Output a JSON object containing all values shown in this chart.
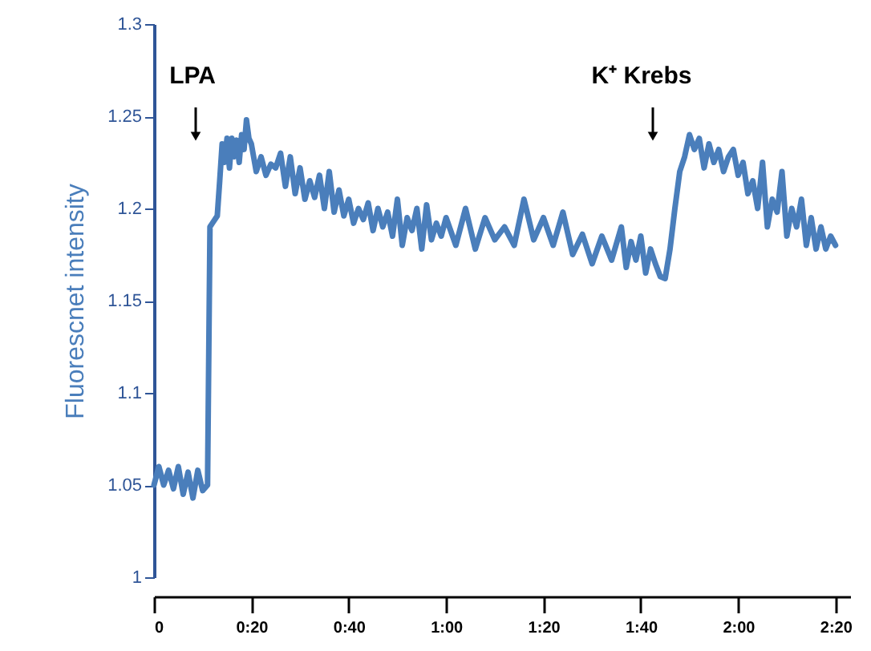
{
  "chart_data": {
    "type": "line",
    "ylabel": "Fluorescnet intensity",
    "x": [
      0,
      1,
      2,
      3,
      4,
      5,
      6,
      7,
      8,
      9,
      10,
      11,
      11.5,
      12,
      13,
      13.5,
      14,
      14.5,
      15,
      15.5,
      16,
      16.5,
      17,
      17.5,
      18,
      18.5,
      19,
      19.5,
      20,
      21,
      22,
      23,
      24,
      25,
      26,
      27,
      28,
      29,
      30,
      31,
      32,
      33,
      34,
      35,
      36,
      37,
      38,
      39,
      40,
      41,
      42,
      43,
      44,
      45,
      46,
      47,
      48,
      49,
      50,
      51,
      52,
      53,
      54,
      55,
      56,
      57,
      58,
      59,
      60,
      62,
      64,
      66,
      68,
      70,
      72,
      74,
      76,
      78,
      80,
      82,
      84,
      86,
      88,
      90,
      92,
      94,
      96,
      97,
      98,
      99,
      100,
      101,
      102,
      103,
      104,
      105,
      106,
      107,
      108,
      109,
      110,
      111,
      112,
      113,
      114,
      115,
      116,
      117,
      118,
      119,
      120,
      121,
      122,
      123,
      124,
      125,
      126,
      127,
      128,
      129,
      130,
      131,
      132,
      133,
      134,
      135,
      136,
      137,
      138,
      139,
      140
    ],
    "series": [
      {
        "color": "#4a7ebb",
        "values": [
          1.05,
          1.06,
          1.05,
          1.058,
          1.048,
          1.06,
          1.045,
          1.057,
          1.043,
          1.058,
          1.047,
          1.05,
          1.19,
          1.192,
          1.196,
          1.215,
          1.235,
          1.225,
          1.238,
          1.222,
          1.238,
          1.228,
          1.237,
          1.225,
          1.24,
          1.232,
          1.248,
          1.238,
          1.235,
          1.22,
          1.228,
          1.218,
          1.224,
          1.222,
          1.23,
          1.212,
          1.228,
          1.208,
          1.222,
          1.205,
          1.215,
          1.206,
          1.218,
          1.2,
          1.22,
          1.198,
          1.21,
          1.196,
          1.205,
          1.192,
          1.2,
          1.194,
          1.203,
          1.188,
          1.2,
          1.19,
          1.198,
          1.185,
          1.205,
          1.18,
          1.195,
          1.188,
          1.2,
          1.178,
          1.202,
          1.183,
          1.192,
          1.185,
          1.195,
          1.18,
          1.2,
          1.178,
          1.195,
          1.183,
          1.19,
          1.18,
          1.205,
          1.183,
          1.195,
          1.18,
          1.198,
          1.175,
          1.186,
          1.17,
          1.185,
          1.172,
          1.19,
          1.168,
          1.182,
          1.172,
          1.185,
          1.165,
          1.178,
          1.17,
          1.163,
          1.162,
          1.178,
          1.2,
          1.22,
          1.228,
          1.24,
          1.232,
          1.238,
          1.222,
          1.235,
          1.225,
          1.232,
          1.22,
          1.228,
          1.232,
          1.218,
          1.225,
          1.208,
          1.215,
          1.2,
          1.225,
          1.19,
          1.205,
          1.198,
          1.22,
          1.185,
          1.2,
          1.19,
          1.205,
          1.18,
          1.195,
          1.178,
          1.19,
          1.178,
          1.185,
          1.18
        ]
      }
    ],
    "xlim": [
      0,
      143
    ],
    "xticks": [
      {
        "value": 0,
        "label": "0"
      },
      {
        "value": 20,
        "label": "0:20"
      },
      {
        "value": 40,
        "label": "0:40"
      },
      {
        "value": 60,
        "label": "1:00"
      },
      {
        "value": 80,
        "label": "1:20"
      },
      {
        "value": 100,
        "label": "1:40"
      },
      {
        "value": 120,
        "label": "2:00"
      },
      {
        "value": 140,
        "label": "2:20"
      }
    ],
    "ylim": [
      1,
      1.3
    ],
    "yticks": [
      1,
      1.05,
      1.1,
      1.15,
      1.2,
      1.25,
      1.3
    ],
    "annotations": [
      "LPA",
      "K⁺ Krebs"
    ],
    "grid": false,
    "marker": "none",
    "line_style": "solid"
  }
}
